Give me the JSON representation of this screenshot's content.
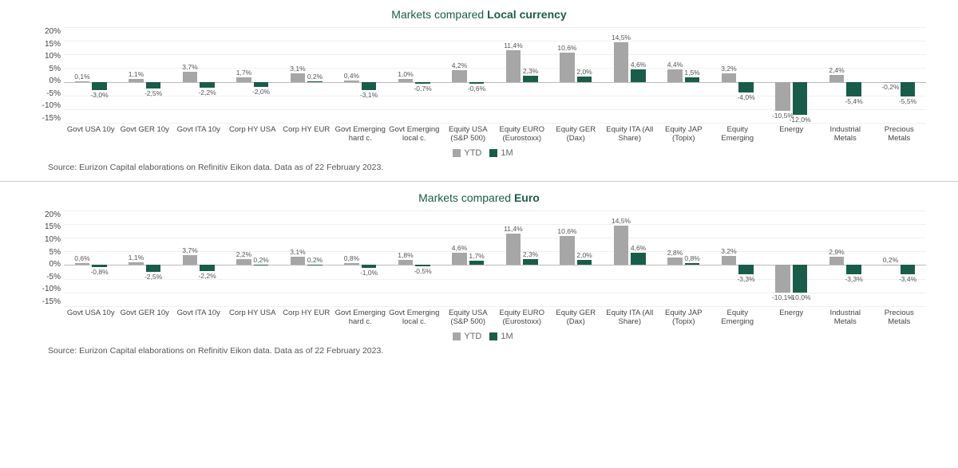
{
  "colors": {
    "ytd": "#a6a6a6",
    "m1": "#1a5c4a",
    "title": "#1a5c4a",
    "grid": "#f0f0f0",
    "zero": "#bbbbbb",
    "background": "#ffffff"
  },
  "y_axis": {
    "min": -15,
    "max": 20,
    "step": 5,
    "ticks": [
      "20%",
      "15%",
      "10%",
      "5%",
      "0%",
      "-5%",
      "-10%",
      "-15%"
    ]
  },
  "legend": {
    "ytd": "YTD",
    "m1": "1M"
  },
  "source": "Source: Eurizon Capital elaborations on Refinitiv Eikon data. Data as of 22 February 2023.",
  "categories": [
    "Govt USA 10y",
    "Govt GER 10y",
    "Govt ITA 10y",
    "Corp HY USA",
    "Corp HY EUR",
    "Govt Emerging hard c.",
    "Govt Emerging local c.",
    "Equity USA (S&P 500)",
    "Equity EURO (Eurostoxx)",
    "Equity GER (Dax)",
    "Equity ITA (All Share)",
    "Equity JAP (Topix)",
    "Equity Emerging",
    "Energy",
    "Industrial Metals",
    "Precious Metals"
  ],
  "charts": [
    {
      "title_prefix": "Markets compared ",
      "title_bold": "Local currency",
      "series": {
        "ytd": [
          0.1,
          1.1,
          3.7,
          1.7,
          3.1,
          0.4,
          1.0,
          4.2,
          11.4,
          10.6,
          14.5,
          4.4,
          3.2,
          -10.5,
          2.4,
          -0.2
        ],
        "m1": [
          -3.0,
          -2.5,
          -2.2,
          -2.0,
          0.2,
          -3.1,
          -0.7,
          -0.6,
          2.3,
          2.0,
          4.6,
          1.5,
          -4.0,
          -12.0,
          -5.4,
          -5.5
        ]
      }
    },
    {
      "title_prefix": "Markets compared ",
      "title_bold": "Euro",
      "series": {
        "ytd": [
          0.6,
          1.1,
          3.7,
          2.2,
          3.1,
          0.8,
          1.8,
          4.6,
          11.4,
          10.6,
          14.5,
          2.8,
          3.2,
          -10.1,
          2.9,
          0.2
        ],
        "m1": [
          -0.8,
          -2.5,
          -2.2,
          0.2,
          0.2,
          -1.0,
          -0.5,
          1.7,
          2.3,
          2.0,
          4.6,
          0.8,
          -3.3,
          -10.0,
          -3.3,
          -3.4
        ]
      }
    }
  ]
}
